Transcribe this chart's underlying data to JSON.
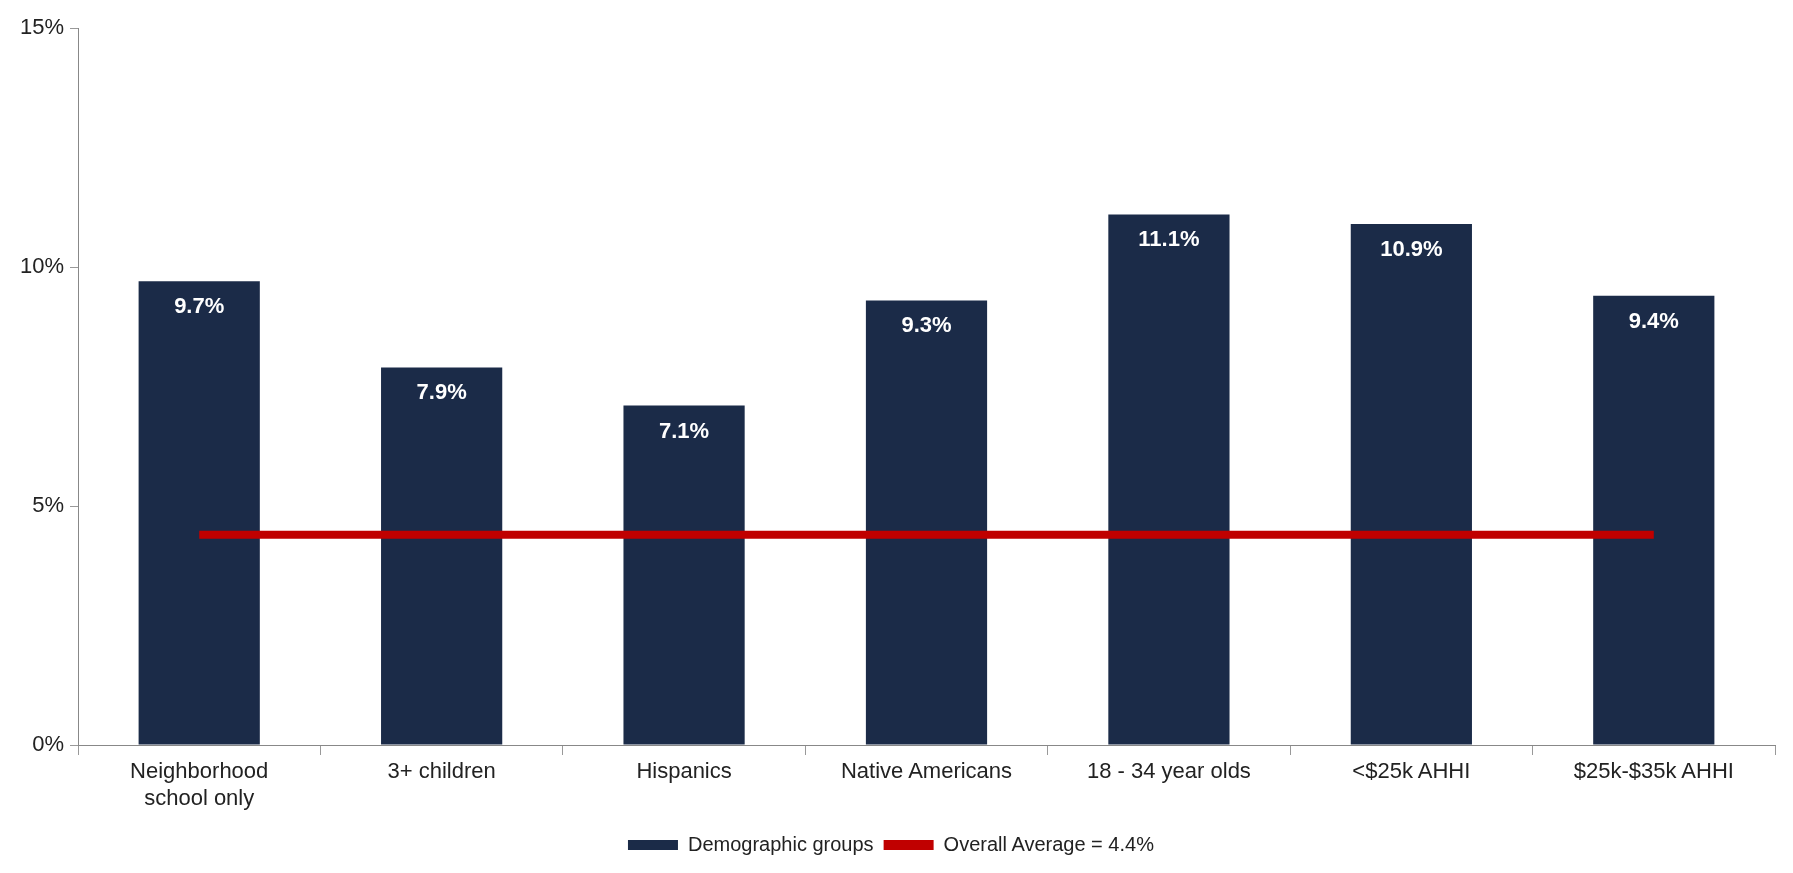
{
  "chart_data": {
    "type": "bar",
    "categories": [
      "Neighborhood school only",
      "3+ children",
      "Hispanics",
      "Native Americans",
      "18 - 34 year olds",
      "<$25k AHHI",
      "$25k-$35k AHHI"
    ],
    "series": [
      {
        "name": "Demographic groups",
        "type": "bar",
        "color": "#1b2b48",
        "values": [
          9.7,
          7.9,
          7.1,
          9.3,
          11.1,
          10.9,
          9.4
        ],
        "value_labels": [
          "9.7%",
          "7.9%",
          "7.1%",
          "9.3%",
          "11.1%",
          "10.9%",
          "9.4%"
        ]
      },
      {
        "name": "Overall Average = 4.4%",
        "type": "line",
        "color": "#c00000",
        "values": [
          4.4,
          4.4,
          4.4,
          4.4,
          4.4,
          4.4,
          4.4
        ]
      }
    ],
    "ylim": [
      0,
      15
    ],
    "yticks": [
      {
        "value": 0,
        "label": "0%"
      },
      {
        "value": 5,
        "label": "5%"
      },
      {
        "value": 10,
        "label": "10%"
      },
      {
        "value": 15,
        "label": "15%"
      }
    ],
    "grid": false,
    "legend": "bottom"
  }
}
